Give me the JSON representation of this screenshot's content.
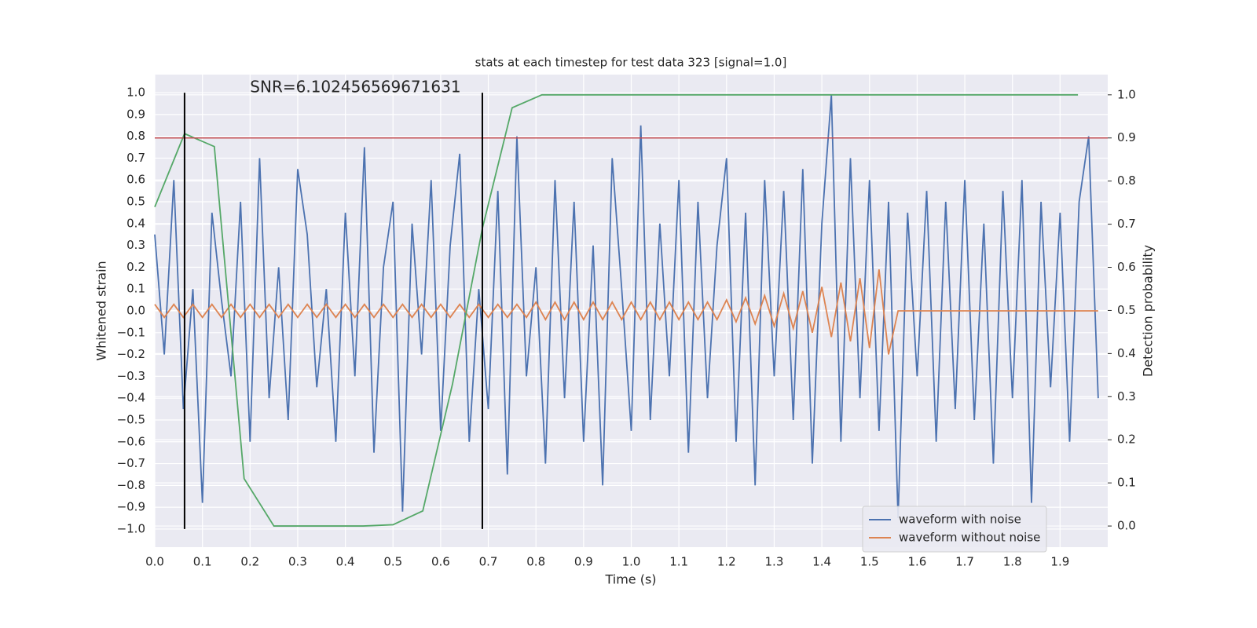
{
  "chart_data": {
    "type": "line",
    "title": "stats at each timestep for test data 323 [signal=1.0]",
    "x_label": "Time (s)",
    "y_label": "Whitened strain",
    "y2_label": "Detection probability",
    "annotation": {
      "text": "SNR=6.102456569671631",
      "x": 0.2,
      "y": 1.0
    },
    "xlim": [
      0,
      2
    ],
    "ylim": [
      -1.083,
      1.083
    ],
    "y2lim": [
      -0.049,
      1.047
    ],
    "xticks": [
      {
        "value": 0,
        "label": "0.0"
      },
      0.1,
      0.2,
      0.3,
      0.4,
      0.5,
      0.6,
      0.7,
      0.8,
      0.9,
      {
        "value": 1,
        "label": "1.0"
      },
      1.1,
      1.2,
      1.3,
      1.4,
      1.5,
      1.6,
      1.7,
      1.8,
      1.9
    ],
    "yticks": [
      {
        "value": -1,
        "label": "−1.0"
      },
      {
        "value": -0.9,
        "label": "−0.9"
      },
      {
        "value": -0.8,
        "label": "−0.8"
      },
      {
        "value": -0.7,
        "label": "−0.7"
      },
      {
        "value": -0.6,
        "label": "−0.6"
      },
      {
        "value": -0.5,
        "label": "−0.5"
      },
      {
        "value": -0.4,
        "label": "−0.4"
      },
      {
        "value": -0.3,
        "label": "−0.3"
      },
      {
        "value": -0.2,
        "label": "−0.2"
      },
      {
        "value": -0.1,
        "label": "−0.1"
      },
      {
        "value": 0,
        "label": "0.0"
      },
      0.1,
      0.2,
      0.3,
      0.4,
      0.5,
      0.6,
      0.7,
      0.8,
      0.9,
      {
        "value": 1,
        "label": "1.0"
      }
    ],
    "y2ticks": [
      {
        "value": 0,
        "label": "0.0"
      },
      0.1,
      0.2,
      0.3,
      0.4,
      0.5,
      0.6,
      0.7,
      0.8,
      0.9,
      {
        "value": 1,
        "label": "1.0"
      }
    ],
    "grid": true,
    "legend": "lower right",
    "x": [
      0,
      0.02,
      0.04,
      0.06,
      0.08,
      0.1,
      0.12,
      0.14,
      0.16,
      0.18,
      0.2,
      0.22,
      0.24,
      0.26,
      0.28,
      0.3,
      0.32,
      0.34,
      0.36,
      0.38,
      0.4,
      0.42,
      0.44,
      0.46,
      0.48,
      0.5,
      0.52,
      0.54,
      0.56,
      0.58,
      0.6,
      0.62,
      0.64,
      0.66,
      0.68,
      0.7,
      0.72,
      0.74,
      0.76,
      0.78,
      0.8,
      0.82,
      0.84,
      0.86,
      0.88,
      0.9,
      0.92,
      0.94,
      0.96,
      0.98,
      1,
      1.02,
      1.04,
      1.06,
      1.08,
      1.1,
      1.12,
      1.14,
      1.16,
      1.18,
      1.2,
      1.22,
      1.24,
      1.26,
      1.28,
      1.3,
      1.32,
      1.34,
      1.36,
      1.38,
      1.4,
      1.42,
      1.44,
      1.46,
      1.48,
      1.5,
      1.52,
      1.54,
      1.56,
      1.58,
      1.6,
      1.62,
      1.64,
      1.66,
      1.68,
      1.7,
      1.72,
      1.74,
      1.76,
      1.78,
      1.8,
      1.82,
      1.84,
      1.86,
      1.88,
      1.9,
      1.92,
      1.94,
      1.96,
      1.98
    ],
    "series": [
      {
        "name": "waveform with noise",
        "color": "#4c72b0",
        "values": [
          0.35,
          -0.2,
          0.6,
          -0.45,
          0.1,
          -0.88,
          0.45,
          0.05,
          -0.3,
          0.5,
          -0.6,
          0.7,
          -0.4,
          0.2,
          -0.5,
          0.65,
          0.35,
          -0.35,
          0.1,
          -0.6,
          0.45,
          -0.3,
          0.75,
          -0.65,
          0.2,
          0.5,
          -0.92,
          0.4,
          -0.2,
          0.6,
          -0.55,
          0.3,
          0.72,
          -0.6,
          0.1,
          -0.45,
          0.55,
          -0.75,
          0.8,
          -0.3,
          0.2,
          -0.7,
          0.6,
          -0.4,
          0.5,
          -0.6,
          0.3,
          -0.8,
          0.7,
          0.1,
          -0.55,
          0.85,
          -0.5,
          0.4,
          -0.3,
          0.6,
          -0.65,
          0.5,
          -0.4,
          0.3,
          0.7,
          -0.6,
          0.45,
          -0.8,
          0.6,
          -0.3,
          0.55,
          -0.5,
          0.65,
          -0.7,
          0.4,
          0.99,
          -0.6,
          0.7,
          -0.4,
          0.6,
          -0.55,
          0.5,
          -0.95,
          0.45,
          -0.3,
          0.55,
          -0.6,
          0.5,
          -0.45,
          0.6,
          -0.5,
          0.4,
          -0.7,
          0.55,
          -0.4,
          0.6,
          -0.88,
          0.5,
          -0.35,
          0.45,
          -0.6,
          0.5,
          0.8,
          -0.4
        ]
      },
      {
        "name": "waveform without noise",
        "color": "#dd8452",
        "values": [
          0.03,
          -0.03,
          0.03,
          -0.03,
          0.03,
          -0.03,
          0.03,
          -0.03,
          0.03,
          -0.03,
          0.03,
          -0.03,
          0.03,
          -0.03,
          0.03,
          -0.03,
          0.03,
          -0.03,
          0.03,
          -0.03,
          0.03,
          -0.03,
          0.03,
          -0.03,
          0.03,
          -0.03,
          0.03,
          -0.03,
          0.03,
          -0.03,
          0.03,
          -0.03,
          0.03,
          -0.03,
          0.03,
          -0.03,
          0.03,
          -0.03,
          0.03,
          -0.03,
          0.04,
          -0.04,
          0.04,
          -0.04,
          0.04,
          -0.04,
          0.04,
          -0.04,
          0.04,
          -0.04,
          0.04,
          -0.04,
          0.04,
          -0.04,
          0.04,
          -0.04,
          0.04,
          -0.04,
          0.04,
          -0.04,
          0.05,
          -0.05,
          0.06,
          -0.06,
          0.07,
          -0.07,
          0.08,
          -0.08,
          0.09,
          -0.1,
          0.11,
          -0.12,
          0.13,
          -0.14,
          0.15,
          -0.17,
          0.19,
          -0.2,
          0,
          0,
          0,
          0,
          0,
          0,
          0,
          0,
          0,
          0,
          0,
          0,
          0,
          0,
          0,
          0,
          0,
          0,
          0,
          0,
          0,
          0
        ]
      },
      {
        "color": "#55a868",
        "axis": "y2",
        "x": [
          0,
          0.0625,
          0.125,
          0.1875,
          0.25,
          0.3125,
          0.375,
          0.4375,
          0.5,
          0.5625,
          0.625,
          0.6875,
          0.75,
          0.8125,
          0.875,
          0.9375,
          1,
          1.0625,
          1.125,
          1.1875,
          1.25,
          1.3125,
          1.375,
          1.4375,
          1.5,
          1.5625,
          1.625,
          1.6875,
          1.75,
          1.8125,
          1.875,
          1.9375
        ],
        "values": [
          0.74,
          0.91,
          0.88,
          0.11,
          0.0,
          0.0,
          0.0,
          0.0,
          0.003,
          0.035,
          0.33,
          0.69,
          0.97,
          1,
          1,
          1,
          1,
          1,
          1,
          1,
          1,
          1,
          1,
          1,
          1,
          1,
          1,
          1,
          1,
          1,
          1,
          1
        ]
      }
    ],
    "hline": {
      "value": 0.9,
      "axis": "y2",
      "color": "#c44e52"
    },
    "vlines": {
      "x": [
        0.0625,
        0.6875
      ],
      "ymin": -1,
      "ymax": 1,
      "color": "#000000"
    }
  }
}
